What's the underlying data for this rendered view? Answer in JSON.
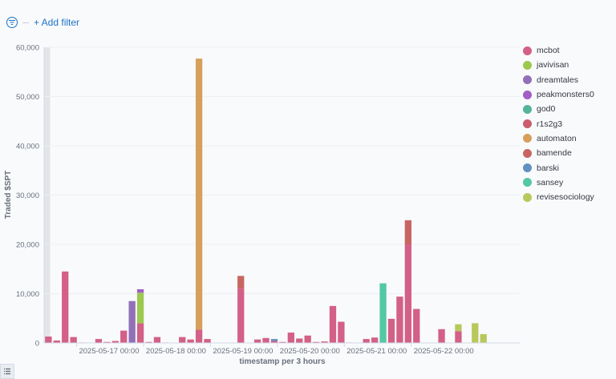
{
  "filter": {
    "add_label": "+ Add filter"
  },
  "chart_data": {
    "type": "bar",
    "stacked": true,
    "ylabel": "Traded $SPT",
    "xlabel": "timestamp per 3 hours",
    "ylim": [
      0,
      60000
    ],
    "yticks": [
      0,
      10000,
      20000,
      30000,
      40000,
      50000,
      60000
    ],
    "ytick_labels": [
      "0",
      "10,000",
      "20,000",
      "30,000",
      "40,000",
      "50,000",
      "60,000"
    ],
    "xticks": [
      {
        "slot": 3,
        "label": "2025-05-17 00:00"
      },
      {
        "slot": 11,
        "label": "2025-05-18 00:00"
      },
      {
        "slot": 19,
        "label": "2025-05-19 00:00"
      },
      {
        "slot": 27,
        "label": "2025-05-20 00:00"
      },
      {
        "slot": 35,
        "label": "2025-05-21 00:00"
      },
      {
        "slot": 43,
        "label": "2025-05-22 00:00"
      }
    ],
    "highlight_slot": 0,
    "legend_position": "right",
    "series": [
      {
        "name": "mcbot",
        "color": "#d36086"
      },
      {
        "name": "javivisan",
        "color": "#9dc84e"
      },
      {
        "name": "dreamtales",
        "color": "#9170b8"
      },
      {
        "name": "peakmonsters0",
        "color": "#a15ec5"
      },
      {
        "name": "god0",
        "color": "#54b399"
      },
      {
        "name": "r1s2g3",
        "color": "#ca5e6e"
      },
      {
        "name": "automaton",
        "color": "#d6a05c"
      },
      {
        "name": "bamende",
        "color": "#c76661"
      },
      {
        "name": "barski",
        "color": "#6092c0"
      },
      {
        "name": "sansey",
        "color": "#54c7a4"
      },
      {
        "name": "revisesociology",
        "color": "#b9c85c"
      }
    ],
    "bars": [
      {
        "slot": 0,
        "stack": [
          {
            "s": "mcbot",
            "v": 1300
          }
        ]
      },
      {
        "slot": 1,
        "stack": [
          {
            "s": "mcbot",
            "v": 500
          }
        ]
      },
      {
        "slot": 2,
        "stack": [
          {
            "s": "mcbot",
            "v": 14500
          }
        ]
      },
      {
        "slot": 3,
        "stack": [
          {
            "s": "mcbot",
            "v": 1200
          }
        ]
      },
      {
        "slot": 4,
        "stack": [
          {
            "s": "mcbot",
            "v": 100
          }
        ]
      },
      {
        "slot": 6,
        "stack": [
          {
            "s": "mcbot",
            "v": 800
          }
        ]
      },
      {
        "slot": 7,
        "stack": [
          {
            "s": "mcbot",
            "v": 200
          }
        ]
      },
      {
        "slot": 8,
        "stack": [
          {
            "s": "mcbot",
            "v": 400
          }
        ]
      },
      {
        "slot": 9,
        "stack": [
          {
            "s": "mcbot",
            "v": 2500
          }
        ]
      },
      {
        "slot": 10,
        "stack": [
          {
            "s": "dreamtales",
            "v": 8500
          }
        ]
      },
      {
        "slot": 11,
        "stack": [
          {
            "s": "mcbot",
            "v": 4000
          },
          {
            "s": "javivisan",
            "v": 6200
          },
          {
            "s": "peakmonsters0",
            "v": 700
          }
        ]
      },
      {
        "slot": 12,
        "stack": [
          {
            "s": "mcbot",
            "v": 200
          }
        ]
      },
      {
        "slot": 13,
        "stack": [
          {
            "s": "mcbot",
            "v": 1200
          }
        ]
      },
      {
        "slot": 14,
        "stack": [
          {
            "s": "mcbot",
            "v": 100
          }
        ]
      },
      {
        "slot": 16,
        "stack": [
          {
            "s": "mcbot",
            "v": 1200
          }
        ]
      },
      {
        "slot": 17,
        "stack": [
          {
            "s": "mcbot",
            "v": 700
          }
        ]
      },
      {
        "slot": 18,
        "stack": [
          {
            "s": "mcbot",
            "v": 2700
          },
          {
            "s": "automaton",
            "v": 55000
          }
        ]
      },
      {
        "slot": 19,
        "stack": [
          {
            "s": "mcbot",
            "v": 800
          }
        ]
      },
      {
        "slot": 23,
        "stack": [
          {
            "s": "mcbot",
            "v": 11000
          },
          {
            "s": "bamende",
            "v": 2600
          }
        ]
      },
      {
        "slot": 25,
        "stack": [
          {
            "s": "mcbot",
            "v": 700
          }
        ]
      },
      {
        "slot": 26,
        "stack": [
          {
            "s": "mcbot",
            "v": 1000
          }
        ]
      },
      {
        "slot": 27,
        "stack": [
          {
            "s": "mcbot",
            "v": 400
          },
          {
            "s": "barski",
            "v": 400
          }
        ]
      },
      {
        "slot": 28,
        "stack": [
          {
            "s": "mcbot",
            "v": 200
          }
        ]
      },
      {
        "slot": 29,
        "stack": [
          {
            "s": "mcbot",
            "v": 2100
          }
        ]
      },
      {
        "slot": 30,
        "stack": [
          {
            "s": "mcbot",
            "v": 900
          }
        ]
      },
      {
        "slot": 31,
        "stack": [
          {
            "s": "mcbot",
            "v": 1500
          }
        ]
      },
      {
        "slot": 32,
        "stack": [
          {
            "s": "mcbot",
            "v": 200
          }
        ]
      },
      {
        "slot": 33,
        "stack": [
          {
            "s": "mcbot",
            "v": 300
          }
        ]
      },
      {
        "slot": 34,
        "stack": [
          {
            "s": "mcbot",
            "v": 7500
          }
        ]
      },
      {
        "slot": 35,
        "stack": [
          {
            "s": "mcbot",
            "v": 4300
          }
        ]
      },
      {
        "slot": 36,
        "stack": [
          {
            "s": "mcbot",
            "v": 100
          }
        ]
      },
      {
        "slot": 38,
        "stack": [
          {
            "s": "mcbot",
            "v": 800
          }
        ]
      },
      {
        "slot": 39,
        "stack": [
          {
            "s": "mcbot",
            "v": 1100
          }
        ]
      },
      {
        "slot": 40,
        "stack": [
          {
            "s": "sansey",
            "v": 12100
          }
        ]
      },
      {
        "slot": 41,
        "stack": [
          {
            "s": "mcbot",
            "v": 4900
          }
        ]
      },
      {
        "slot": 42,
        "stack": [
          {
            "s": "mcbot",
            "v": 9400
          }
        ]
      },
      {
        "slot": 43,
        "stack": [
          {
            "s": "mcbot",
            "v": 20000
          },
          {
            "s": "bamende",
            "v": 4900
          }
        ]
      },
      {
        "slot": 44,
        "stack": [
          {
            "s": "mcbot",
            "v": 6900
          }
        ]
      },
      {
        "slot": 47,
        "stack": [
          {
            "s": "mcbot",
            "v": 2800
          }
        ]
      },
      {
        "slot": 49,
        "stack": [
          {
            "s": "mcbot",
            "v": 2400
          },
          {
            "s": "revisesociology",
            "v": 1400
          }
        ]
      },
      {
        "slot": 51,
        "stack": [
          {
            "s": "revisesociology",
            "v": 4000
          }
        ]
      },
      {
        "slot": 52,
        "stack": [
          {
            "s": "revisesociology",
            "v": 1800
          }
        ]
      }
    ]
  }
}
